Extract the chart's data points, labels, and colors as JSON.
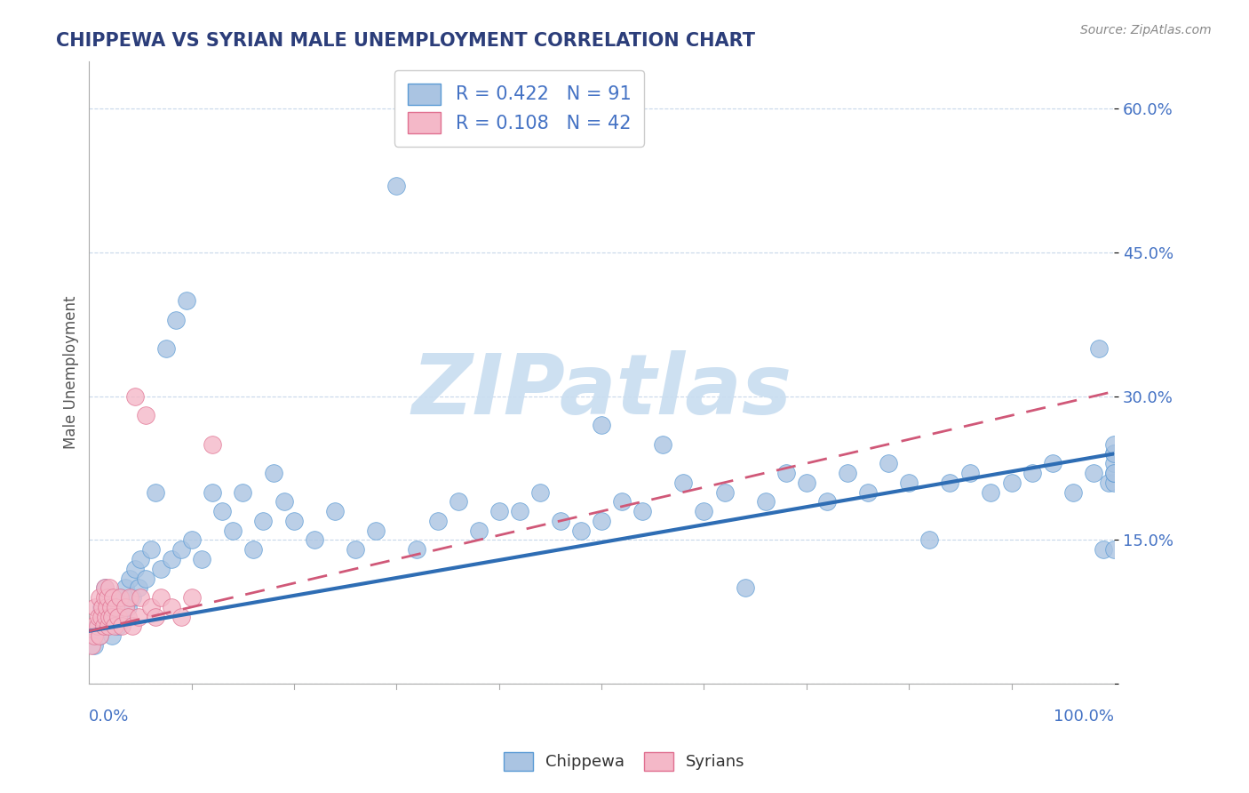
{
  "title": "CHIPPEWA VS SYRIAN MALE UNEMPLOYMENT CORRELATION CHART",
  "source": "Source: ZipAtlas.com",
  "ylabel": "Male Unemployment",
  "xlim": [
    0.0,
    1.0
  ],
  "ylim": [
    0.0,
    0.65
  ],
  "chippewa_R": 0.422,
  "chippewa_N": 91,
  "syrian_R": 0.108,
  "syrian_N": 42,
  "chippewa_color": "#aac4e2",
  "chippewa_edge_color": "#5b9bd5",
  "chippewa_line_color": "#2e6db4",
  "syrian_color": "#f4b8c8",
  "syrian_edge_color": "#e07090",
  "syrian_line_color": "#d05878",
  "background_color": "#ffffff",
  "grid_color": "#c8d8ea",
  "title_color": "#2c3e7a",
  "axis_label_color": "#4472c4",
  "watermark_color": "#c8ddf0",
  "legend_box_color": "#4472c4",
  "legend_N_color": "#e05070",
  "chippewa_x": [
    0.005,
    0.008,
    0.01,
    0.012,
    0.015,
    0.015,
    0.018,
    0.02,
    0.022,
    0.025,
    0.028,
    0.03,
    0.032,
    0.035,
    0.038,
    0.04,
    0.042,
    0.045,
    0.048,
    0.05,
    0.055,
    0.06,
    0.065,
    0.07,
    0.075,
    0.08,
    0.085,
    0.09,
    0.095,
    0.1,
    0.11,
    0.12,
    0.13,
    0.14,
    0.15,
    0.16,
    0.17,
    0.18,
    0.19,
    0.2,
    0.22,
    0.24,
    0.26,
    0.28,
    0.3,
    0.32,
    0.34,
    0.36,
    0.38,
    0.4,
    0.42,
    0.44,
    0.46,
    0.48,
    0.5,
    0.5,
    0.52,
    0.54,
    0.56,
    0.58,
    0.6,
    0.62,
    0.64,
    0.66,
    0.68,
    0.7,
    0.72,
    0.74,
    0.76,
    0.78,
    0.8,
    0.82,
    0.84,
    0.86,
    0.88,
    0.9,
    0.92,
    0.94,
    0.96,
    0.98,
    0.985,
    0.99,
    0.995,
    1.0,
    1.0,
    1.0,
    1.0,
    1.0,
    1.0,
    1.0,
    1.0
  ],
  "chippewa_y": [
    0.04,
    0.06,
    0.05,
    0.08,
    0.07,
    0.1,
    0.06,
    0.08,
    0.05,
    0.07,
    0.06,
    0.09,
    0.07,
    0.1,
    0.08,
    0.11,
    0.09,
    0.12,
    0.1,
    0.13,
    0.11,
    0.14,
    0.2,
    0.12,
    0.35,
    0.13,
    0.38,
    0.14,
    0.4,
    0.15,
    0.13,
    0.2,
    0.18,
    0.16,
    0.2,
    0.14,
    0.17,
    0.22,
    0.19,
    0.17,
    0.15,
    0.18,
    0.14,
    0.16,
    0.52,
    0.14,
    0.17,
    0.19,
    0.16,
    0.18,
    0.18,
    0.2,
    0.17,
    0.16,
    0.17,
    0.27,
    0.19,
    0.18,
    0.25,
    0.21,
    0.18,
    0.2,
    0.1,
    0.19,
    0.22,
    0.21,
    0.19,
    0.22,
    0.2,
    0.23,
    0.21,
    0.15,
    0.21,
    0.22,
    0.2,
    0.21,
    0.22,
    0.23,
    0.2,
    0.22,
    0.35,
    0.14,
    0.21,
    0.24,
    0.21,
    0.22,
    0.23,
    0.14,
    0.22,
    0.24,
    0.25
  ],
  "syrian_x": [
    0.002,
    0.004,
    0.005,
    0.006,
    0.008,
    0.009,
    0.01,
    0.01,
    0.012,
    0.013,
    0.014,
    0.015,
    0.015,
    0.016,
    0.017,
    0.018,
    0.019,
    0.02,
    0.02,
    0.021,
    0.022,
    0.023,
    0.025,
    0.026,
    0.028,
    0.03,
    0.032,
    0.035,
    0.038,
    0.04,
    0.042,
    0.045,
    0.048,
    0.05,
    0.055,
    0.06,
    0.065,
    0.07,
    0.08,
    0.09,
    0.1,
    0.12
  ],
  "syrian_y": [
    0.04,
    0.06,
    0.05,
    0.08,
    0.06,
    0.07,
    0.05,
    0.09,
    0.07,
    0.08,
    0.06,
    0.09,
    0.1,
    0.07,
    0.08,
    0.09,
    0.06,
    0.07,
    0.1,
    0.08,
    0.07,
    0.09,
    0.06,
    0.08,
    0.07,
    0.09,
    0.06,
    0.08,
    0.07,
    0.09,
    0.06,
    0.3,
    0.07,
    0.09,
    0.28,
    0.08,
    0.07,
    0.09,
    0.08,
    0.07,
    0.09,
    0.25
  ],
  "chippewa_slope": 0.185,
  "chippewa_intercept": 0.055,
  "syrian_slope": 0.25,
  "syrian_intercept": 0.055
}
